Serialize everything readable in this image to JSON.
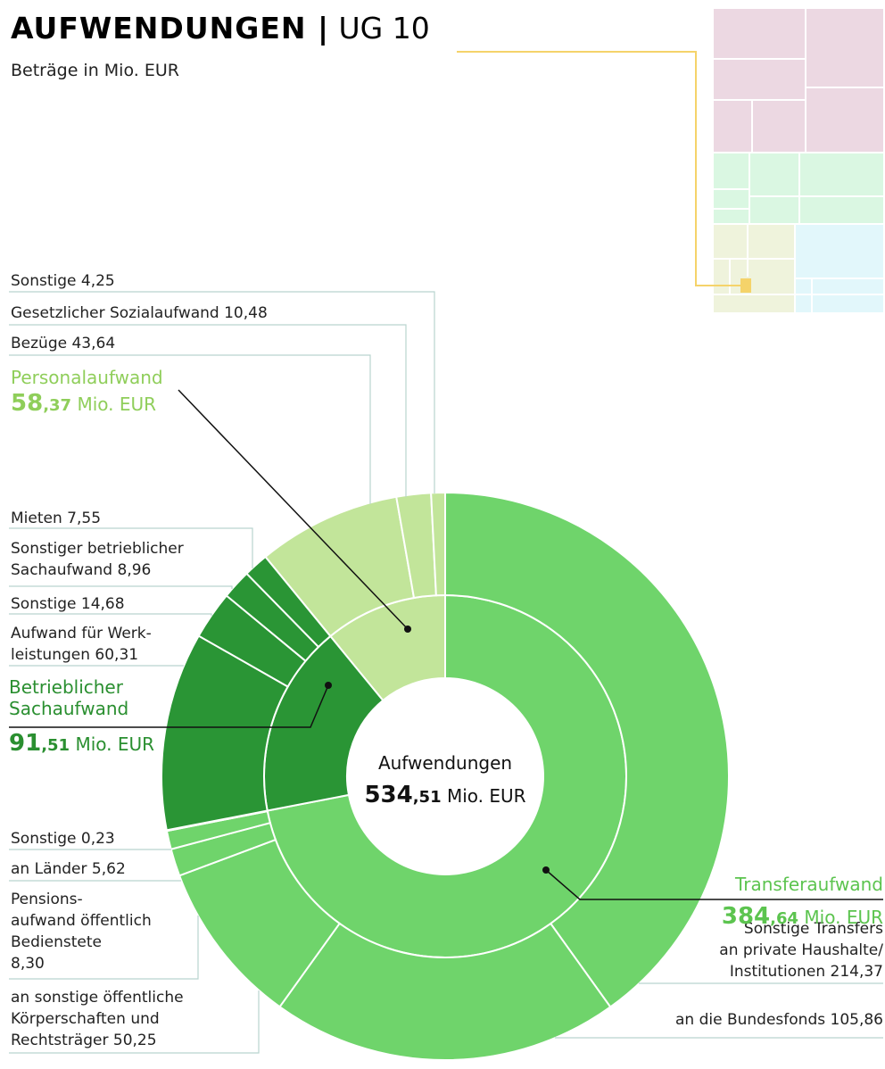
{
  "chart_data": {
    "type": "sunburst",
    "title": "AUFWENDUNGEN |",
    "title_suffix": "UG 10",
    "subtitle": "Beträge in Mio. EUR",
    "unit": "Mio. EUR",
    "center_label": "Aufwendungen",
    "total": 534.51,
    "total_label": "534,51",
    "segments": [
      {
        "name": "Transferaufwand",
        "value": 384.64,
        "value_label": "384,64",
        "color": "#6fd46b",
        "label_color": "#5cc44f",
        "children": [
          {
            "name": "Sonstige Transfers\nan private Haushalte/\nInstitutionen",
            "value": 214.37,
            "value_label": "214,37"
          },
          {
            "name": "an die Bundesfonds",
            "value": 105.86,
            "value_label": "105,86"
          },
          {
            "name": "an sonstige öffentliche\nKörperschaften und\nRechtsträger",
            "value": 50.25,
            "value_label": "50,25"
          },
          {
            "name": "Pensions-\naufwand öffentlich\nBedienstete",
            "value": 8.3,
            "value_label": "8,30"
          },
          {
            "name": "an Länder",
            "value": 5.62,
            "value_label": "5,62"
          },
          {
            "name": "Sonstige",
            "value": 0.23,
            "value_label": "0,23"
          }
        ]
      },
      {
        "name": "Betrieblicher\nSachaufwand",
        "value": 91.51,
        "value_label": "91,51",
        "color": "#2a9535",
        "label_color": "#2a8f30",
        "children": [
          {
            "name": "Aufwand für Werk-\nleistungen",
            "value": 60.31,
            "value_label": "60,31"
          },
          {
            "name": "Sonstige",
            "value": 14.68,
            "value_label": "14,68"
          },
          {
            "name": "Sonstiger betrieblicher\nSachaufwand",
            "value": 8.96,
            "value_label": "8,96"
          },
          {
            "name": "Mieten",
            "value": 7.55,
            "value_label": "7,55"
          }
        ]
      },
      {
        "name": "Personalaufwand",
        "value": 58.37,
        "value_label": "58,37",
        "color": "#c2e59a",
        "label_color": "#8fce5a",
        "children": [
          {
            "name": "Bezüge",
            "value": 43.64,
            "value_label": "43,64"
          },
          {
            "name": "Gesetzlicher Sozialaufwand",
            "value": 10.48,
            "value_label": "10,48"
          },
          {
            "name": "Sonstige",
            "value": 4.25,
            "value_label": "4,25"
          }
        ]
      }
    ]
  }
}
